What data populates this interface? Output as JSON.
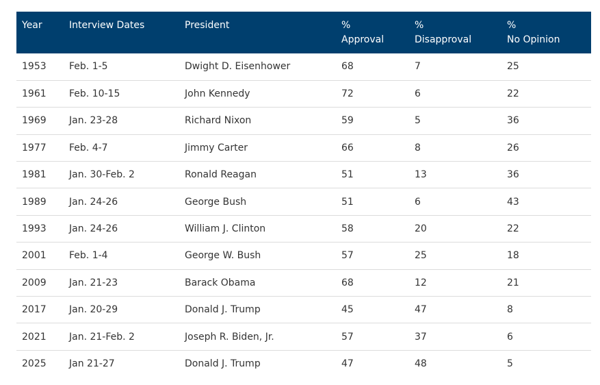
{
  "table": {
    "headers": {
      "year": "Year",
      "dates": "Interview Dates",
      "president": "President",
      "approval": [
        "%",
        "Approval"
      ],
      "disapproval": [
        "%",
        "Disapproval"
      ],
      "no_opinion": [
        "%",
        "No Opinion"
      ]
    },
    "rows": [
      {
        "year": "1953",
        "dates": "Feb. 1-5",
        "president": "Dwight D. Eisenhower",
        "approval": "68",
        "disapproval": "7",
        "no_opinion": "25"
      },
      {
        "year": "1961",
        "dates": "Feb. 10-15",
        "president": "John Kennedy",
        "approval": "72",
        "disapproval": "6",
        "no_opinion": "22"
      },
      {
        "year": "1969",
        "dates": "Jan. 23-28",
        "president": "Richard Nixon",
        "approval": "59",
        "disapproval": "5",
        "no_opinion": "36"
      },
      {
        "year": "1977",
        "dates": "Feb. 4-7",
        "president": "Jimmy Carter",
        "approval": "66",
        "disapproval": "8",
        "no_opinion": "26"
      },
      {
        "year": "1981",
        "dates": "Jan. 30-Feb. 2",
        "president": "Ronald Reagan",
        "approval": "51",
        "disapproval": "13",
        "no_opinion": "36"
      },
      {
        "year": "1989",
        "dates": "Jan. 24-26",
        "president": "George Bush",
        "approval": "51",
        "disapproval": "6",
        "no_opinion": "43"
      },
      {
        "year": "1993",
        "dates": "Jan. 24-26",
        "president": "William J. Clinton",
        "approval": "58",
        "disapproval": "20",
        "no_opinion": "22"
      },
      {
        "year": "2001",
        "dates": "Feb. 1-4",
        "president": "George W. Bush",
        "approval": "57",
        "disapproval": "25",
        "no_opinion": "18"
      },
      {
        "year": "2009",
        "dates": "Jan. 21-23",
        "president": "Barack Obama",
        "approval": "68",
        "disapproval": "12",
        "no_opinion": "21"
      },
      {
        "year": "2017",
        "dates": "Jan. 20-29",
        "president": "Donald J. Trump",
        "approval": "45",
        "disapproval": "47",
        "no_opinion": "8"
      },
      {
        "year": "2021",
        "dates": "Jan. 21-Feb. 2",
        "president": "Joseph R. Biden, Jr.",
        "approval": "57",
        "disapproval": "37",
        "no_opinion": "6"
      },
      {
        "year": "2025",
        "dates": "Jan 21-27",
        "president": "Donald J. Trump",
        "approval": "47",
        "disapproval": "48",
        "no_opinion": "5"
      }
    ]
  },
  "colors": {
    "header_bg": "#003f6e",
    "header_text": "#ffffff",
    "body_text": "#333333",
    "row_divider": "#dcdcdc"
  }
}
